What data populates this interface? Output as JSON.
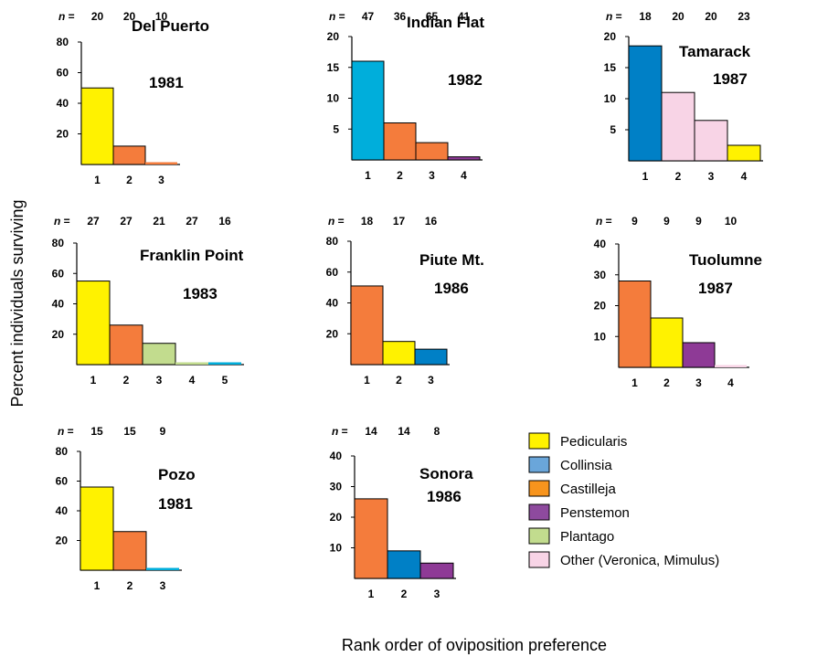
{
  "figure": {
    "ylabel": "Percent individuals surviving",
    "xlabel": "Rank order of oviposition preference",
    "n_prefix": "n ="
  },
  "legend": [
    {
      "name": "Pedicularis",
      "color": "#FFF200"
    },
    {
      "name": "Collinsia",
      "color": "#6AA6DA"
    },
    {
      "name": "Castilleja",
      "color": "#F7941D"
    },
    {
      "name": "Penstemon",
      "color": "#8E4A9E"
    },
    {
      "name": "Plantago",
      "color": "#C2DC8E"
    },
    {
      "name": "Other (Veronica, Mimulus)",
      "color": "#F8D4E6"
    }
  ],
  "chart_data": [
    {
      "type": "bar",
      "title": [
        "Del Puerto",
        "1981"
      ],
      "categories": [
        "1",
        "2",
        "3"
      ],
      "values": [
        50,
        12,
        1
      ],
      "n": [
        "20",
        "20",
        "10"
      ],
      "colors": [
        "#FFF200",
        "#F47C3C",
        "#F47C3C"
      ],
      "ylim": [
        0,
        80
      ],
      "yticks": [
        20,
        40,
        60,
        80
      ]
    },
    {
      "type": "bar",
      "title": [
        "Indian Flat",
        "1982"
      ],
      "categories": [
        "1",
        "2",
        "3",
        "4"
      ],
      "values": [
        16,
        6,
        2.8,
        0.5
      ],
      "n": [
        "47",
        "36",
        "65",
        "41"
      ],
      "colors": [
        "#00AEDB",
        "#F47C3C",
        "#F47C3C",
        "#8E3A96"
      ],
      "ylim": [
        0,
        20
      ],
      "yticks": [
        5,
        10,
        15,
        20
      ]
    },
    {
      "type": "bar",
      "title": [
        "Tamarack",
        "1987"
      ],
      "categories": [
        "1",
        "2",
        "3",
        "4"
      ],
      "values": [
        18.5,
        11,
        6.5,
        2.5
      ],
      "n": [
        "18",
        "20",
        "20",
        "23"
      ],
      "colors": [
        "#0080C6",
        "#F8D4E6",
        "#F8D4E6",
        "#FFF200"
      ],
      "ylim": [
        0,
        20
      ],
      "yticks": [
        5,
        10,
        15,
        20
      ]
    },
    {
      "type": "bar",
      "title": [
        "Franklin Point",
        "1983"
      ],
      "categories": [
        "1",
        "2",
        "3",
        "4",
        "5"
      ],
      "values": [
        55,
        26,
        14,
        1,
        1
      ],
      "n": [
        "27",
        "27",
        "21",
        "27",
        "16"
      ],
      "colors": [
        "#FFF200",
        "#F47C3C",
        "#C2DC8E",
        "#C2DC8E",
        "#00AEDB"
      ],
      "ylim": [
        0,
        80
      ],
      "yticks": [
        20,
        40,
        60,
        80
      ]
    },
    {
      "type": "bar",
      "title": [
        "Piute Mt.",
        "1986"
      ],
      "categories": [
        "1",
        "2",
        "3"
      ],
      "values": [
        51,
        15,
        10
      ],
      "n": [
        "18",
        "17",
        "16"
      ],
      "colors": [
        "#F47C3C",
        "#FFF200",
        "#0080C6"
      ],
      "ylim": [
        0,
        80
      ],
      "yticks": [
        20,
        40,
        60,
        80
      ]
    },
    {
      "type": "bar",
      "title": [
        "Tuolumne",
        "1987"
      ],
      "categories": [
        "1",
        "2",
        "3",
        "4"
      ],
      "values": [
        28,
        16,
        8,
        0.3
      ],
      "n": [
        "9",
        "9",
        "9",
        "10"
      ],
      "colors": [
        "#F47C3C",
        "#FFF200",
        "#8E3A96",
        "#F8D4E6"
      ],
      "ylim": [
        0,
        40
      ],
      "yticks": [
        10,
        20,
        30,
        40
      ]
    },
    {
      "type": "bar",
      "title": [
        "Pozo",
        "1981"
      ],
      "categories": [
        "1",
        "2",
        "3"
      ],
      "values": [
        56,
        26,
        1
      ],
      "n": [
        "15",
        "15",
        "9"
      ],
      "colors": [
        "#FFF200",
        "#F47C3C",
        "#00AEDB"
      ],
      "ylim": [
        0,
        80
      ],
      "yticks": [
        20,
        40,
        60,
        80
      ]
    },
    {
      "type": "bar",
      "title": [
        "Sonora",
        "1986"
      ],
      "categories": [
        "1",
        "2",
        "3"
      ],
      "values": [
        26,
        9,
        5
      ],
      "n": [
        "14",
        "14",
        "8"
      ],
      "colors": [
        "#F47C3C",
        "#0080C6",
        "#8E3A96"
      ],
      "ylim": [
        0,
        40
      ],
      "yticks": [
        10,
        20,
        30,
        40
      ]
    }
  ]
}
